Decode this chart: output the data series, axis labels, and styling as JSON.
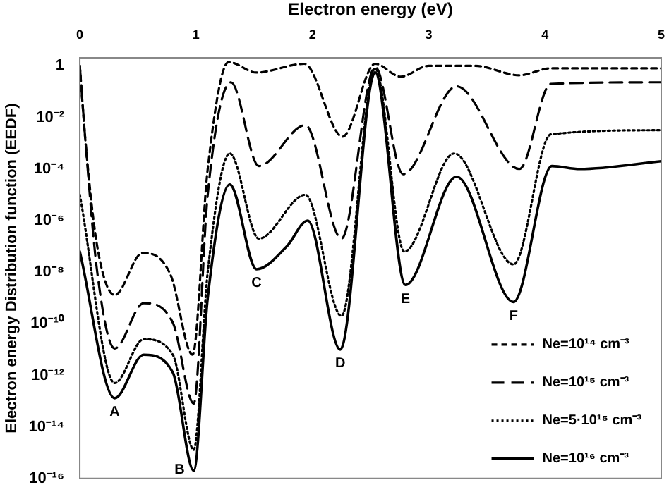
{
  "chart_data": {
    "type": "line",
    "xlabel": "Electron energy (eV)",
    "ylabel": "Electron energy Distribution function (EEDF)",
    "xlim": [
      0,
      5
    ],
    "xticks": [
      0,
      1,
      2,
      3,
      4,
      5
    ],
    "ylim": [
      1e-16,
      2
    ],
    "yticks": [
      {
        "value": 1,
        "label": "1"
      },
      {
        "value": 0.01,
        "label": "10⁻²"
      },
      {
        "value": 0.0001,
        "label": "10⁻⁴"
      },
      {
        "value": 1e-06,
        "label": "10⁻⁶"
      },
      {
        "value": 1e-08,
        "label": "10⁻⁸"
      },
      {
        "value": 1e-10,
        "label": "10⁻¹⁰"
      },
      {
        "value": 1e-12,
        "label": "10⁻¹²"
      },
      {
        "value": 1e-14,
        "label": "10⁻¹⁴"
      },
      {
        "value": 1e-16,
        "label": "10⁻¹⁶"
      }
    ],
    "log": "y",
    "grid": false,
    "legend": "bottom right",
    "marker": "none",
    "series": [
      {
        "name": "Ne=10¹⁴ cm⁻³",
        "color": "#000000",
        "line_style": "dashed",
        "x": [
          0,
          0.05,
          0.15,
          0.3,
          0.54,
          0.78,
          0.97,
          1.1,
          1.28,
          1.52,
          1.93,
          2.26,
          2.54,
          2.76,
          3.0,
          3.4,
          3.78,
          4.05,
          5
        ],
        "values": [
          1,
          0.001,
          1e-07,
          1.3e-09,
          5.6e-08,
          8e-09,
          6.3e-12,
          0.0001,
          1.4,
          0.55,
          1.2,
          0.0018,
          1.2,
          0.38,
          1.0,
          1.0,
          0.43,
          0.8,
          0.8
        ]
      },
      {
        "name": "Ne=10¹⁵ cm⁻³",
        "color": "#000000",
        "line_style": "dashed",
        "x": [
          0,
          0.05,
          0.15,
          0.3,
          0.55,
          0.8,
          0.98,
          1.1,
          1.3,
          1.54,
          1.94,
          2.25,
          2.54,
          2.78,
          3.24,
          3.78,
          4.05,
          5
        ],
        "values": [
          1,
          0.001,
          1e-08,
          1.1e-11,
          6.3e-10,
          1.1e-10,
          8e-14,
          1e-05,
          0.23,
          0.00013,
          0.005,
          2e-07,
          0.9,
          6.3e-05,
          0.16,
          0.0001,
          0.2,
          0.23
        ]
      },
      {
        "name": "Ne=5·10¹⁵ cm⁻³",
        "color": "#000000",
        "line_style": "dotted",
        "x": [
          0,
          0.3,
          0.55,
          0.8,
          0.98,
          1.1,
          1.29,
          1.54,
          1.94,
          2.25,
          2.54,
          2.79,
          3.22,
          3.73,
          4.05,
          5
        ],
        "values": [
          1e-05,
          5e-13,
          2.5e-11,
          6.3e-12,
          1.3e-15,
          1e-08,
          0.0004,
          2e-07,
          1e-05,
          2e-10,
          0.8,
          6.3e-08,
          0.0004,
          2e-08,
          0.0022,
          0.0032
        ]
      },
      {
        "name": "Ne=10¹⁶ cm⁻³",
        "color": "#000000",
        "line_style": "solid",
        "x": [
          0,
          0.3,
          0.55,
          0.8,
          0.98,
          1.1,
          1.29,
          1.52,
          1.78,
          1.96,
          2.24,
          2.54,
          2.8,
          3.24,
          3.73,
          4.06,
          4.3,
          5
        ],
        "values": [
          6.3e-08,
          1.3e-13,
          6.3e-12,
          1.3e-12,
          2e-16,
          1e-09,
          2.5e-05,
          1.3e-08,
          1e-07,
          1e-06,
          1e-11,
          0.56,
          3.2e-09,
          5e-05,
          7e-10,
          0.00013,
          0.0001,
          0.0002
        ]
      }
    ],
    "annotations": [
      {
        "text": "A",
        "x": 0.3,
        "y": 1.3e-13
      },
      {
        "text": "B",
        "x": 0.98,
        "y": 2e-16
      },
      {
        "text": "C",
        "x": 1.52,
        "y": 1.3e-08
      },
      {
        "text": "D",
        "x": 2.24,
        "y": 1e-11
      },
      {
        "text": "E",
        "x": 2.8,
        "y": 3.2e-09
      },
      {
        "text": "F",
        "x": 3.73,
        "y": 7e-10
      }
    ]
  }
}
